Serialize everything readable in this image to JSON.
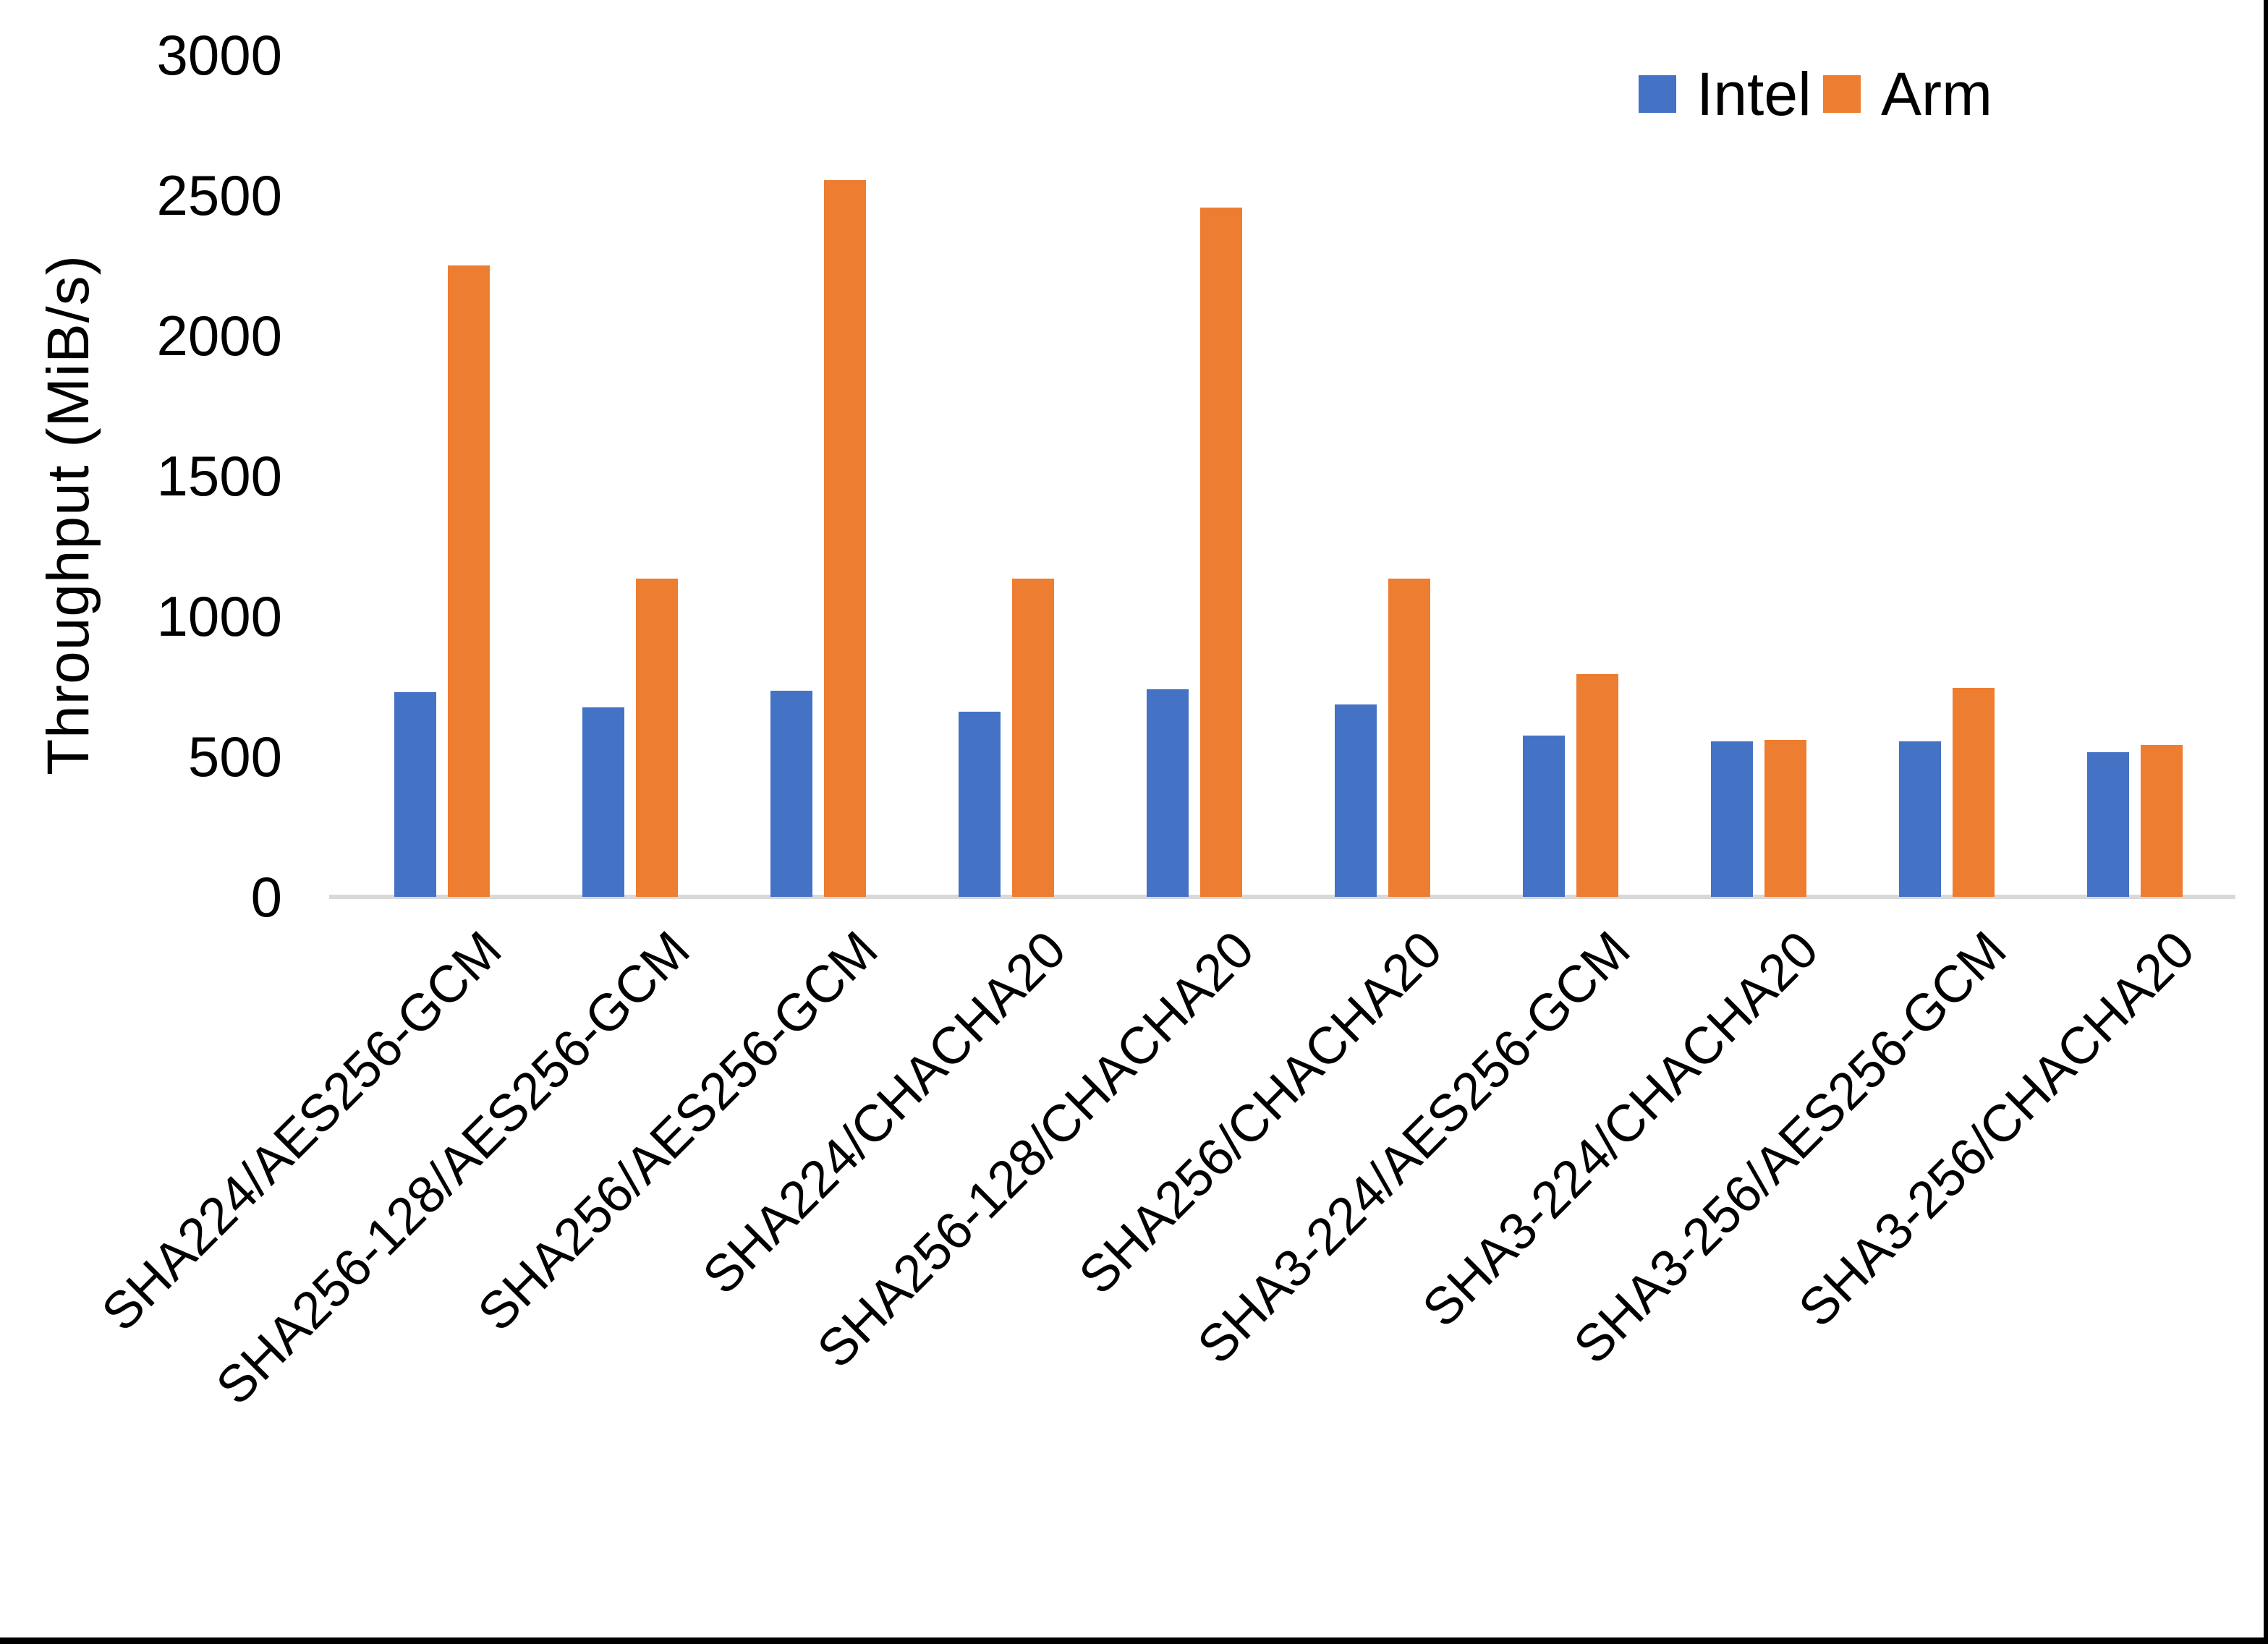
{
  "chart_data": {
    "type": "bar",
    "title": "",
    "xlabel": "",
    "ylabel": "Throughput (MiB/s)",
    "ylim": [
      0,
      3000
    ],
    "yticks": [
      0,
      500,
      1000,
      1500,
      2000,
      2500,
      3000
    ],
    "grid": false,
    "legend_position": "top-right",
    "categories": [
      "SHA224/AES256-GCM",
      "SHA256-128/AES256-GCM",
      "SHA256/AES256-GCM",
      "SHA224/CHACHA20",
      "SHA256-128/CHACHA20",
      "SHA256/CHACHA20",
      "SHA3-224/AES256-GCM",
      "SHA3-224/CHACHA20",
      "SHA3-256/AES256-GCM",
      "SHA3-256/CHACHA20"
    ],
    "series": [
      {
        "name": "Intel",
        "color": "#4472C4",
        "values": [
          730,
          675,
          735,
          660,
          740,
          685,
          575,
          555,
          555,
          515
        ]
      },
      {
        "name": "Arm",
        "color": "#ED7D31",
        "values": [
          2250,
          1135,
          2555,
          1135,
          2455,
          1135,
          795,
          560,
          745,
          540
        ]
      }
    ],
    "axis_line_color": "#D9D9D9",
    "text_color": "#000000",
    "background_color": "#FFFFFF",
    "border_color": "#000000"
  }
}
